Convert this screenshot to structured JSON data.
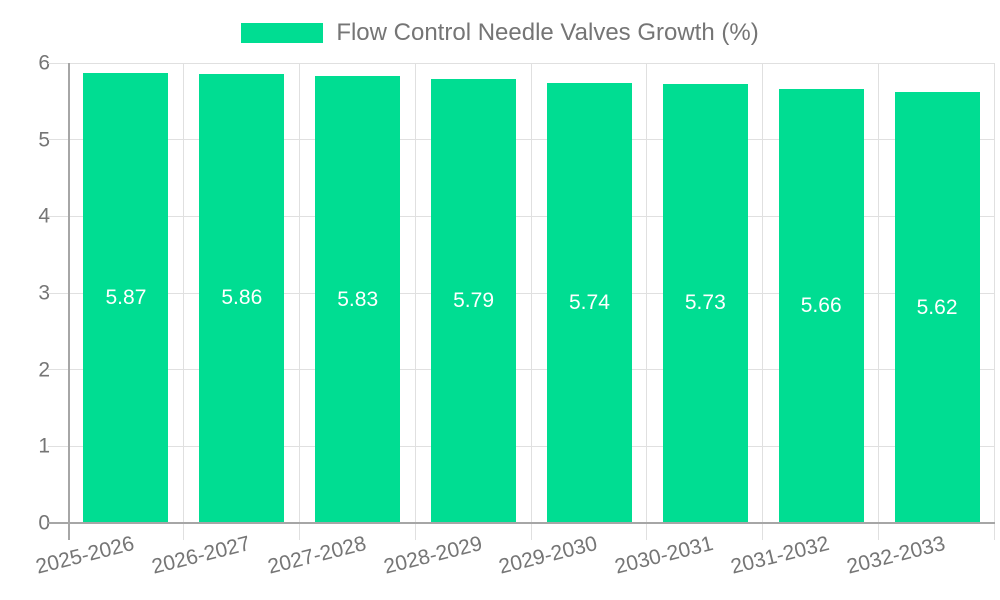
{
  "chart_data": {
    "type": "bar",
    "title": "Flow Control Needle Valves Growth (%)",
    "categories": [
      "2025-2026",
      "2026-2027",
      "2027-2028",
      "2028-2029",
      "2029-2030",
      "2030-2031",
      "2031-2032",
      "2032-2033"
    ],
    "series": [
      {
        "name": "Flow Control Needle Valves Growth (%)",
        "values": [
          5.87,
          5.86,
          5.83,
          5.79,
          5.74,
          5.73,
          5.66,
          5.62
        ]
      }
    ],
    "value_labels": [
      "5.87",
      "5.86",
      "5.83",
      "5.79",
      "5.74",
      "5.73",
      "5.66",
      "5.62"
    ],
    "xlabel": "",
    "ylabel": "",
    "ylim": [
      0,
      6
    ],
    "yticks": [
      0,
      1,
      2,
      3,
      4,
      5,
      6
    ],
    "grid": true,
    "legend_position": "top",
    "colors": {
      "bar": "#00DD92",
      "bar_label": "#ffffff",
      "axis_line": "#a6a6a6",
      "gridline": "#e0e0e0",
      "text": "#757575",
      "background": "#ffffff"
    }
  }
}
